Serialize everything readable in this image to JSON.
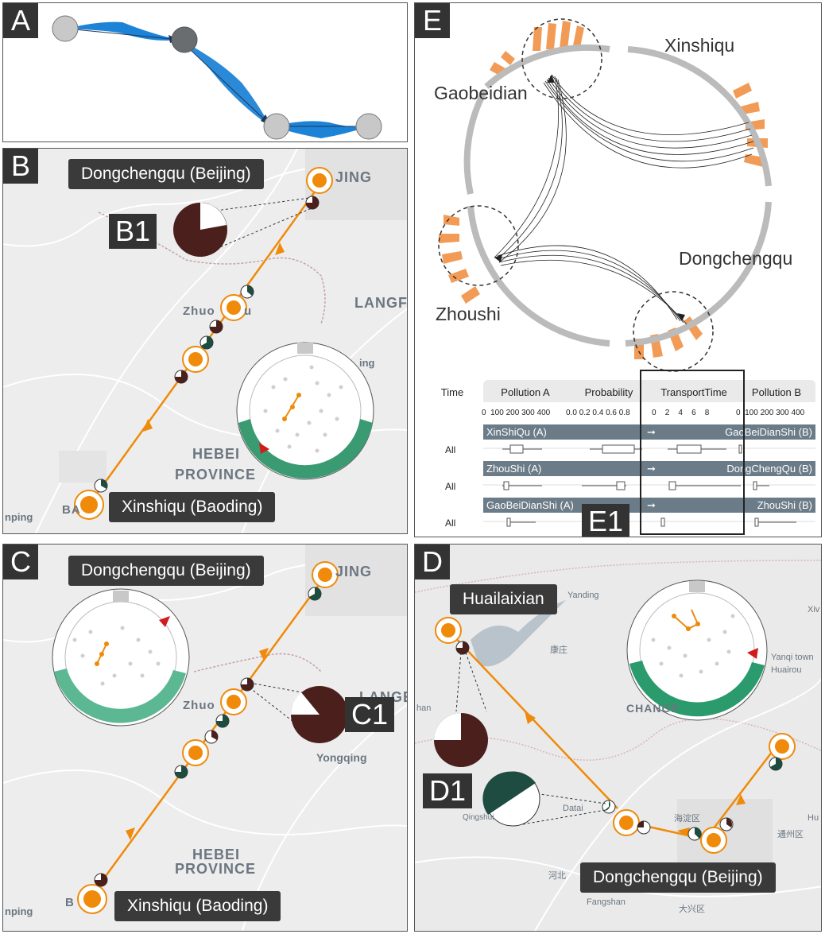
{
  "panels": {
    "a": {
      "label": "A"
    },
    "b": {
      "label": "B",
      "b1": "B1",
      "origin": "Dongchengqu (Beijing)",
      "dest": "Xinshiqu (Baoding)",
      "map_labels": {
        "langf": "LANGF",
        "zhuo": "Zhuo",
        "ou": "u",
        "hebei": "HEBEI",
        "province": "PROVINCE",
        "jing": "JING",
        "ing": "ing",
        "nping": "nping",
        "ba": "BA"
      }
    },
    "c": {
      "label": "C",
      "c1": "C1",
      "origin": "Dongchengqu (Beijing)",
      "dest": "Xinshiqu (Baoding)",
      "map_labels": {
        "lange": "LANGE",
        "zhuo": "Zhuo",
        "yongqing": "Yongqing",
        "hebei": "HEBEI",
        "province": "PROVINCE",
        "jing": "JING",
        "nping": "nping",
        "ba": "B"
      }
    },
    "d": {
      "label": "D",
      "d1": "D1",
      "origin": "Huailaixian",
      "dest": "Dongchengqu (Beijing)",
      "map_labels": {
        "changp": "CHANGP",
        "yanqi": "Yanqi town",
        "huairou": "Huairou",
        "qingshui": "Qingshui",
        "datai": "Datai",
        "fangshan": "Fangshan",
        "han": "han",
        "yanding": "Yanding",
        "kangzhuang": "康庄",
        "daxing": "大兴区",
        "haidian": "海淀区",
        "tongzhou": "通州区",
        "hebei": "河北",
        "xiv": "Xiv",
        "hu": "Hu"
      }
    },
    "e": {
      "label": "E",
      "e1": "E1",
      "cities": [
        "Xinshiqu",
        "Gaobeidian",
        "Dongchengqu",
        "Zhoushi"
      ]
    }
  },
  "table": {
    "time_header": "Time",
    "columns": [
      "Pollution A",
      "Probability",
      "TransportTime",
      "Pollution B"
    ],
    "ticks": {
      "pollution_a": [
        "0",
        "100",
        "200",
        "300",
        "400"
      ],
      "probability": [
        "0.0",
        "0.2",
        "0.4",
        "0.6",
        "0.8"
      ],
      "transport": [
        "0",
        "2",
        "4",
        "6",
        "8"
      ],
      "pollution_b": [
        "0",
        "100",
        "200",
        "300",
        "400"
      ]
    },
    "rows": [
      {
        "from": "XinShiQu (A)",
        "to": "GaoBeiDianShi (B)",
        "time": "All"
      },
      {
        "from": "ZhouShi (A)",
        "to": "DongChengQu (B)",
        "time": "All"
      },
      {
        "from": "GaoBeiDianShi (A)",
        "to": "ZhouShi (B)",
        "time": "All"
      }
    ],
    "arrow": "➞"
  },
  "colors": {
    "orange": "#ef8a0a",
    "darkred": "#4a1f1c",
    "darkgreen": "#1e4c40",
    "blue": "#1c83d6",
    "grey": "#b9b9b9"
  }
}
